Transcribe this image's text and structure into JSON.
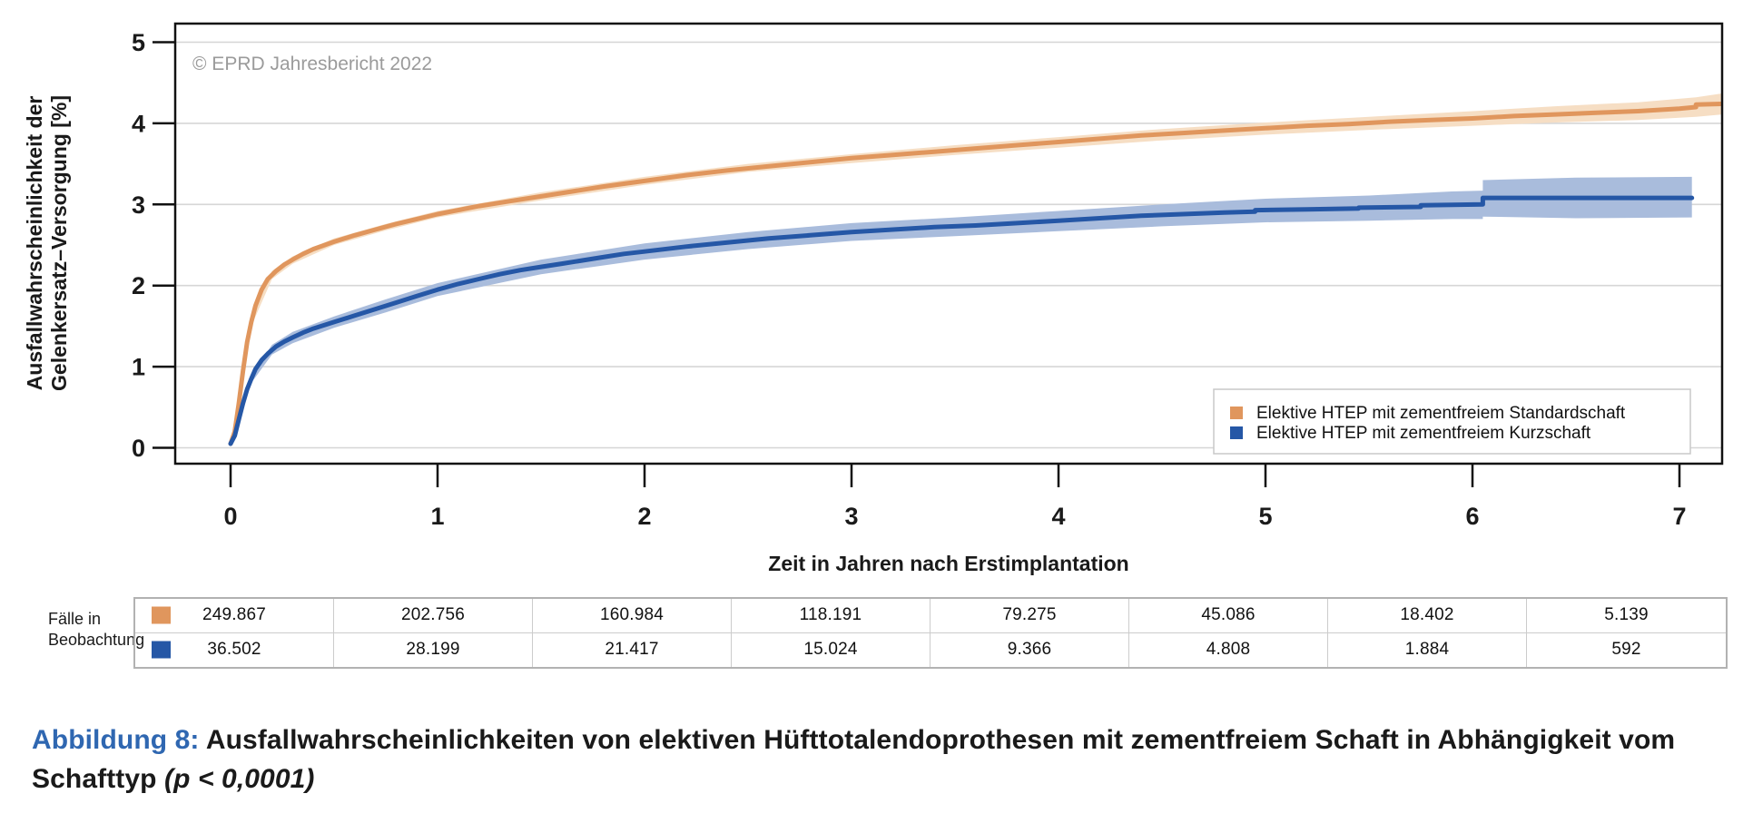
{
  "chart_data": {
    "type": "line",
    "copyright": "© EPRD Jahresbericht 2022",
    "xlabel": "Zeit in Jahren nach Erstimplantation",
    "ylabel_line1": "Ausfallwahrscheinlichkeit der",
    "ylabel_line2": "Gelenkersatz–Versorgung [%]",
    "x_ticks": [
      0,
      1,
      2,
      3,
      4,
      5,
      6,
      7
    ],
    "y_ticks": [
      0,
      1,
      2,
      3,
      4,
      5
    ],
    "xlim": [
      -0.27,
      7.21
    ],
    "ylim": [
      -0.2,
      5.22
    ],
    "grid": "horizontal",
    "legend_position": "bottom-right",
    "colors": {
      "grid": "#d6d6d6",
      "axis": "#111111",
      "copyright": "#9b9b9b",
      "legend_border": "#c8c8c8"
    },
    "series": [
      {
        "name": "Elektive HTEP mit zementfreiem Standardschaft",
        "color": "#E0965D",
        "band_color": "#F6DEC4",
        "points": [
          [
            0,
            0.05
          ],
          [
            0.02,
            0.2
          ],
          [
            0.04,
            0.55
          ],
          [
            0.06,
            0.95
          ],
          [
            0.08,
            1.3
          ],
          [
            0.1,
            1.55
          ],
          [
            0.12,
            1.75
          ],
          [
            0.15,
            1.95
          ],
          [
            0.18,
            2.08
          ],
          [
            0.22,
            2.18
          ],
          [
            0.26,
            2.26
          ],
          [
            0.3,
            2.32
          ],
          [
            0.35,
            2.39
          ],
          [
            0.4,
            2.45
          ],
          [
            0.5,
            2.54
          ],
          [
            0.6,
            2.62
          ],
          [
            0.7,
            2.69
          ],
          [
            0.8,
            2.76
          ],
          [
            0.9,
            2.82
          ],
          [
            1.0,
            2.88
          ],
          [
            1.1,
            2.93
          ],
          [
            1.2,
            2.98
          ],
          [
            1.35,
            3.04
          ],
          [
            1.5,
            3.1
          ],
          [
            1.65,
            3.16
          ],
          [
            1.8,
            3.22
          ],
          [
            2.0,
            3.29
          ],
          [
            2.2,
            3.36
          ],
          [
            2.4,
            3.42
          ],
          [
            2.6,
            3.47
          ],
          [
            2.8,
            3.52
          ],
          [
            3.0,
            3.57
          ],
          [
            3.2,
            3.61
          ],
          [
            3.4,
            3.65
          ],
          [
            3.6,
            3.69
          ],
          [
            3.8,
            3.73
          ],
          [
            4.0,
            3.77
          ],
          [
            4.2,
            3.81
          ],
          [
            4.4,
            3.85
          ],
          [
            4.6,
            3.88
          ],
          [
            4.8,
            3.91
          ],
          [
            5.0,
            3.94
          ],
          [
            5.2,
            3.97
          ],
          [
            5.4,
            3.99
          ],
          [
            5.6,
            4.02
          ],
          [
            5.8,
            4.04
          ],
          [
            6.0,
            4.06
          ],
          [
            6.2,
            4.09
          ],
          [
            6.4,
            4.11
          ],
          [
            6.6,
            4.13
          ],
          [
            6.8,
            4.15
          ],
          [
            7.0,
            4.18
          ],
          [
            7.08,
            4.2
          ],
          [
            7.08,
            4.23
          ],
          [
            7.21,
            4.24
          ]
        ],
        "band": [
          [
            0,
            0.03,
            0.07
          ],
          [
            0.1,
            1.5,
            1.6
          ],
          [
            0.2,
            2.08,
            2.18
          ],
          [
            0.3,
            2.27,
            2.36
          ],
          [
            0.5,
            2.5,
            2.58
          ],
          [
            0.75,
            2.68,
            2.76
          ],
          [
            1.0,
            2.84,
            2.92
          ],
          [
            1.5,
            3.05,
            3.15
          ],
          [
            2.0,
            3.24,
            3.34
          ],
          [
            2.5,
            3.4,
            3.5
          ],
          [
            3.0,
            3.51,
            3.62
          ],
          [
            3.5,
            3.61,
            3.73
          ],
          [
            4.0,
            3.7,
            3.83
          ],
          [
            4.5,
            3.79,
            3.93
          ],
          [
            5.0,
            3.86,
            4.01
          ],
          [
            5.5,
            3.92,
            4.08
          ],
          [
            6.0,
            3.97,
            4.15
          ],
          [
            6.4,
            4.01,
            4.21
          ],
          [
            6.8,
            4.04,
            4.26
          ],
          [
            7.08,
            4.08,
            4.32
          ],
          [
            7.21,
            4.11,
            4.37
          ]
        ]
      },
      {
        "name": "Elektive HTEP mit zementfreiem Kurzschaft",
        "color": "#2557A6",
        "band_color": "#A9BCDC",
        "points": [
          [
            0,
            0.05
          ],
          [
            0.02,
            0.15
          ],
          [
            0.04,
            0.35
          ],
          [
            0.06,
            0.55
          ],
          [
            0.08,
            0.72
          ],
          [
            0.1,
            0.85
          ],
          [
            0.12,
            0.97
          ],
          [
            0.15,
            1.08
          ],
          [
            0.18,
            1.16
          ],
          [
            0.22,
            1.25
          ],
          [
            0.26,
            1.31
          ],
          [
            0.3,
            1.36
          ],
          [
            0.35,
            1.42
          ],
          [
            0.4,
            1.47
          ],
          [
            0.5,
            1.55
          ],
          [
            0.6,
            1.63
          ],
          [
            0.7,
            1.71
          ],
          [
            0.8,
            1.79
          ],
          [
            0.9,
            1.87
          ],
          [
            1.0,
            1.95
          ],
          [
            1.1,
            2.02
          ],
          [
            1.2,
            2.08
          ],
          [
            1.3,
            2.14
          ],
          [
            1.4,
            2.19
          ],
          [
            1.5,
            2.23
          ],
          [
            1.6,
            2.27
          ],
          [
            1.7,
            2.31
          ],
          [
            1.8,
            2.35
          ],
          [
            1.9,
            2.39
          ],
          [
            2.0,
            2.42
          ],
          [
            2.2,
            2.48
          ],
          [
            2.4,
            2.53
          ],
          [
            2.6,
            2.58
          ],
          [
            2.8,
            2.62
          ],
          [
            3.0,
            2.66
          ],
          [
            3.2,
            2.69
          ],
          [
            3.4,
            2.72
          ],
          [
            3.6,
            2.74
          ],
          [
            3.8,
            2.77
          ],
          [
            4.0,
            2.8
          ],
          [
            4.2,
            2.83
          ],
          [
            4.4,
            2.86
          ],
          [
            4.6,
            2.88
          ],
          [
            4.8,
            2.9
          ],
          [
            4.95,
            2.91
          ],
          [
            4.95,
            2.93
          ],
          [
            5.2,
            2.94
          ],
          [
            5.45,
            2.95
          ],
          [
            5.45,
            2.96
          ],
          [
            5.75,
            2.97
          ],
          [
            5.75,
            2.99
          ],
          [
            6.05,
            3.0
          ],
          [
            6.05,
            3.08
          ],
          [
            7.06,
            3.08
          ]
        ],
        "band": [
          [
            0,
            0.03,
            0.07
          ],
          [
            0.1,
            0.8,
            0.9
          ],
          [
            0.2,
            1.15,
            1.27
          ],
          [
            0.3,
            1.29,
            1.43
          ],
          [
            0.5,
            1.48,
            1.62
          ],
          [
            0.75,
            1.67,
            1.83
          ],
          [
            1.0,
            1.87,
            2.03
          ],
          [
            1.5,
            2.14,
            2.32
          ],
          [
            2.0,
            2.32,
            2.52
          ],
          [
            2.5,
            2.45,
            2.66
          ],
          [
            3.0,
            2.55,
            2.77
          ],
          [
            3.5,
            2.61,
            2.84
          ],
          [
            4.0,
            2.67,
            2.92
          ],
          [
            4.5,
            2.73,
            3.0
          ],
          [
            5.0,
            2.78,
            3.07
          ],
          [
            5.5,
            2.8,
            3.11
          ],
          [
            5.9,
            2.82,
            3.16
          ],
          [
            6.05,
            2.82,
            3.17
          ],
          [
            6.05,
            2.85,
            3.3
          ],
          [
            6.5,
            2.83,
            3.33
          ],
          [
            7.06,
            2.84,
            3.34
          ]
        ]
      }
    ]
  },
  "table": {
    "row_label_line1": "Fälle in",
    "row_label_line2": "Beobachtung",
    "rows": [
      {
        "series": "Elektive HTEP mit zementfreiem Standardschaft",
        "color": "#E0965D",
        "values": [
          "249.867",
          "202.756",
          "160.984",
          "118.191",
          "79.275",
          "45.086",
          "18.402",
          "5.139"
        ]
      },
      {
        "series": "Elektive HTEP mit zementfreiem Kurzschaft",
        "color": "#2557A6",
        "values": [
          "36.502",
          "28.199",
          "21.417",
          "15.024",
          "9.366",
          "4.808",
          "1.884",
          "592"
        ]
      }
    ]
  },
  "caption": {
    "label": "Abbildung 8:",
    "label_color": "#2F67B1",
    "text": " Ausfallwahrscheinlichkeiten von elektiven Hüfttotalendoprothesen mit zementfreiem Schaft in Abhängigkeit vom Schafttyp ",
    "p_value": "(p < 0,0001)"
  }
}
